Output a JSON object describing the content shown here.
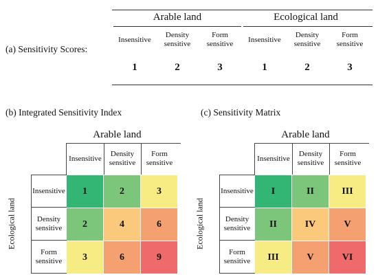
{
  "panel_a": {
    "caption": "(a) Sensitivity Scores:",
    "groups": [
      "Arable land",
      "Ecological land"
    ],
    "columns": [
      [
        "Insensitive"
      ],
      [
        "Density",
        "sensitive"
      ],
      [
        "Form",
        "sensitive"
      ],
      [
        "Insensitive"
      ],
      [
        "Density",
        "sensitive"
      ],
      [
        "Form",
        "sensitive"
      ]
    ],
    "scores": [
      "1",
      "2",
      "3",
      "1",
      "2",
      "3"
    ]
  },
  "panel_b": {
    "caption": "(b) Integrated Sensitivity Index",
    "top_title": "Arable land",
    "side_title": "Ecological land",
    "col_heads": [
      [
        "Insensitive"
      ],
      [
        "Density",
        "sensitive"
      ],
      [
        "Form",
        "sensitive"
      ]
    ],
    "row_heads": [
      [
        "Insensitive"
      ],
      [
        "Density",
        "sensitive"
      ],
      [
        "Form",
        "sensitive"
      ]
    ],
    "cells": [
      [
        "1",
        "2",
        "3"
      ],
      [
        "2",
        "4",
        "6"
      ],
      [
        "3",
        "6",
        "9"
      ]
    ]
  },
  "panel_c": {
    "caption": "(c) Sensitivity Matrix",
    "top_title": "Arable land",
    "side_title": "Ecological land",
    "col_heads": [
      [
        "Insensitive"
      ],
      [
        "Density",
        "sensitive"
      ],
      [
        "Form",
        "sensitive"
      ]
    ],
    "row_heads": [
      [
        "Insensitive"
      ],
      [
        "Density",
        "sensitive"
      ],
      [
        "Form",
        "sensitive"
      ]
    ],
    "cells": [
      [
        "I",
        "II",
        "III"
      ],
      [
        "II",
        "IV",
        "V"
      ],
      [
        "III",
        "V",
        "VI"
      ]
    ]
  },
  "colors": {
    "c1": "#33b673",
    "c2": "#7cc67c",
    "c3": "#f7ec84",
    "c4": "#fbc97c",
    "c6": "#f5a070",
    "c9": "#ef6a6a"
  },
  "cell_color_keys": [
    [
      "c1",
      "c2",
      "c3"
    ],
    [
      "c2",
      "c4",
      "c6"
    ],
    [
      "c3",
      "c6",
      "c9"
    ]
  ]
}
